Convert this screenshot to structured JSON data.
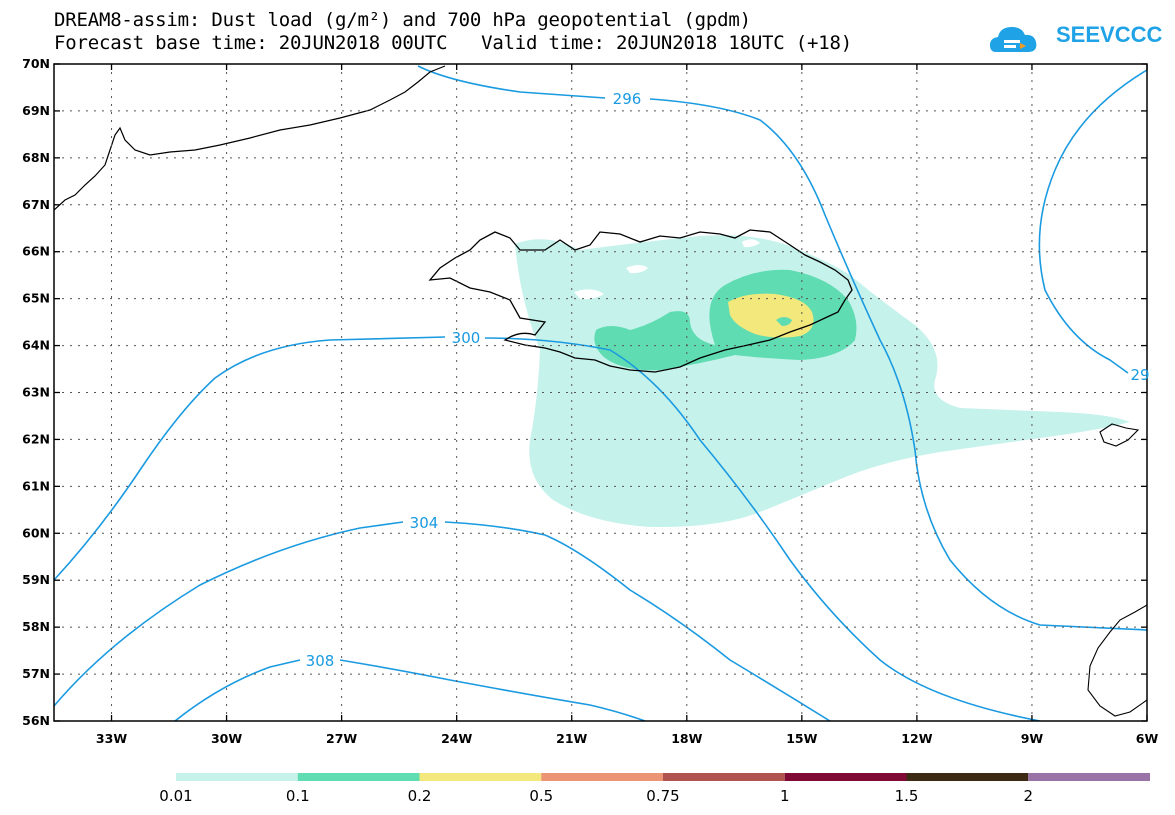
{
  "title": {
    "line1": "DREAM8-assim: Dust load (g/m²) and 700 hPa geopotential (gpdm)",
    "line2": "Forecast base time: 20JUN2018 00UTC   Valid time: 20JUN2018 18UTC (+18)"
  },
  "logo": {
    "text": "SEEVCCC",
    "icon": "cloud-logo-icon"
  },
  "colors": {
    "contour": "#1a9ae0",
    "coast": "#000000",
    "frame": "#000000",
    "grid": "#555555"
  },
  "map": {
    "lon_range": [
      -34.5,
      -6
    ],
    "lat_range": [
      56,
      70
    ],
    "lat_labels": [
      "70N",
      "69N",
      "68N",
      "67N",
      "66N",
      "65N",
      "64N",
      "63N",
      "62N",
      "61N",
      "60N",
      "59N",
      "58N",
      "57N",
      "56N"
    ],
    "lon_labels": [
      "33W",
      "30W",
      "27W",
      "24W",
      "21W",
      "18W",
      "15W",
      "12W",
      "9W",
      "6W"
    ],
    "contour_labels": [
      "296",
      "300",
      "304",
      "308",
      "29"
    ]
  },
  "colorbar": {
    "colors": [
      "#c6f2ec",
      "#5fdcb1",
      "#f3e87c",
      "#eb9575",
      "#b15450",
      "#800a33",
      "#3d2a14",
      "#9a73a6"
    ],
    "labels": [
      "0.01",
      "0.1",
      "0.2",
      "0.5",
      "0.75",
      "1",
      "1.5",
      "2"
    ]
  }
}
